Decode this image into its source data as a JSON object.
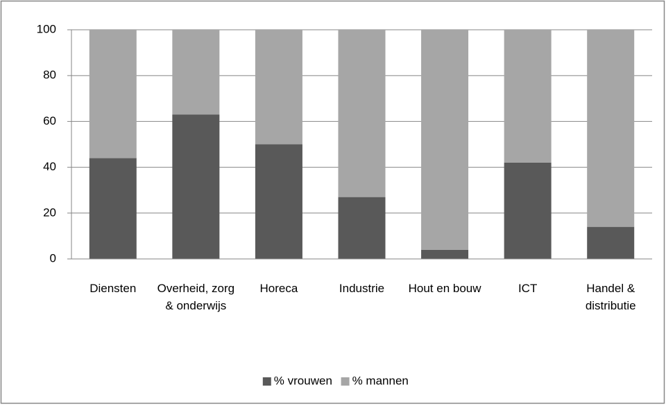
{
  "chart_data": {
    "type": "stacked_bar",
    "categories": [
      "Diensten",
      "Overheid, zorg & onderwijs",
      "Horeca",
      "Industrie",
      "Hout en bouw",
      "ICT",
      "Handel & distributie"
    ],
    "series": [
      {
        "name": "% vrouwen",
        "color": "#595959",
        "values": [
          44,
          63,
          50,
          27,
          4,
          42,
          14
        ]
      },
      {
        "name": "% mannen",
        "color": "#a6a6a6",
        "values": [
          56,
          37,
          50,
          73,
          96,
          58,
          86
        ]
      }
    ],
    "ylim": [
      0,
      100
    ],
    "yticks": [
      0,
      20,
      40,
      60,
      80,
      100
    ],
    "grid": true,
    "legend": "bottom"
  }
}
